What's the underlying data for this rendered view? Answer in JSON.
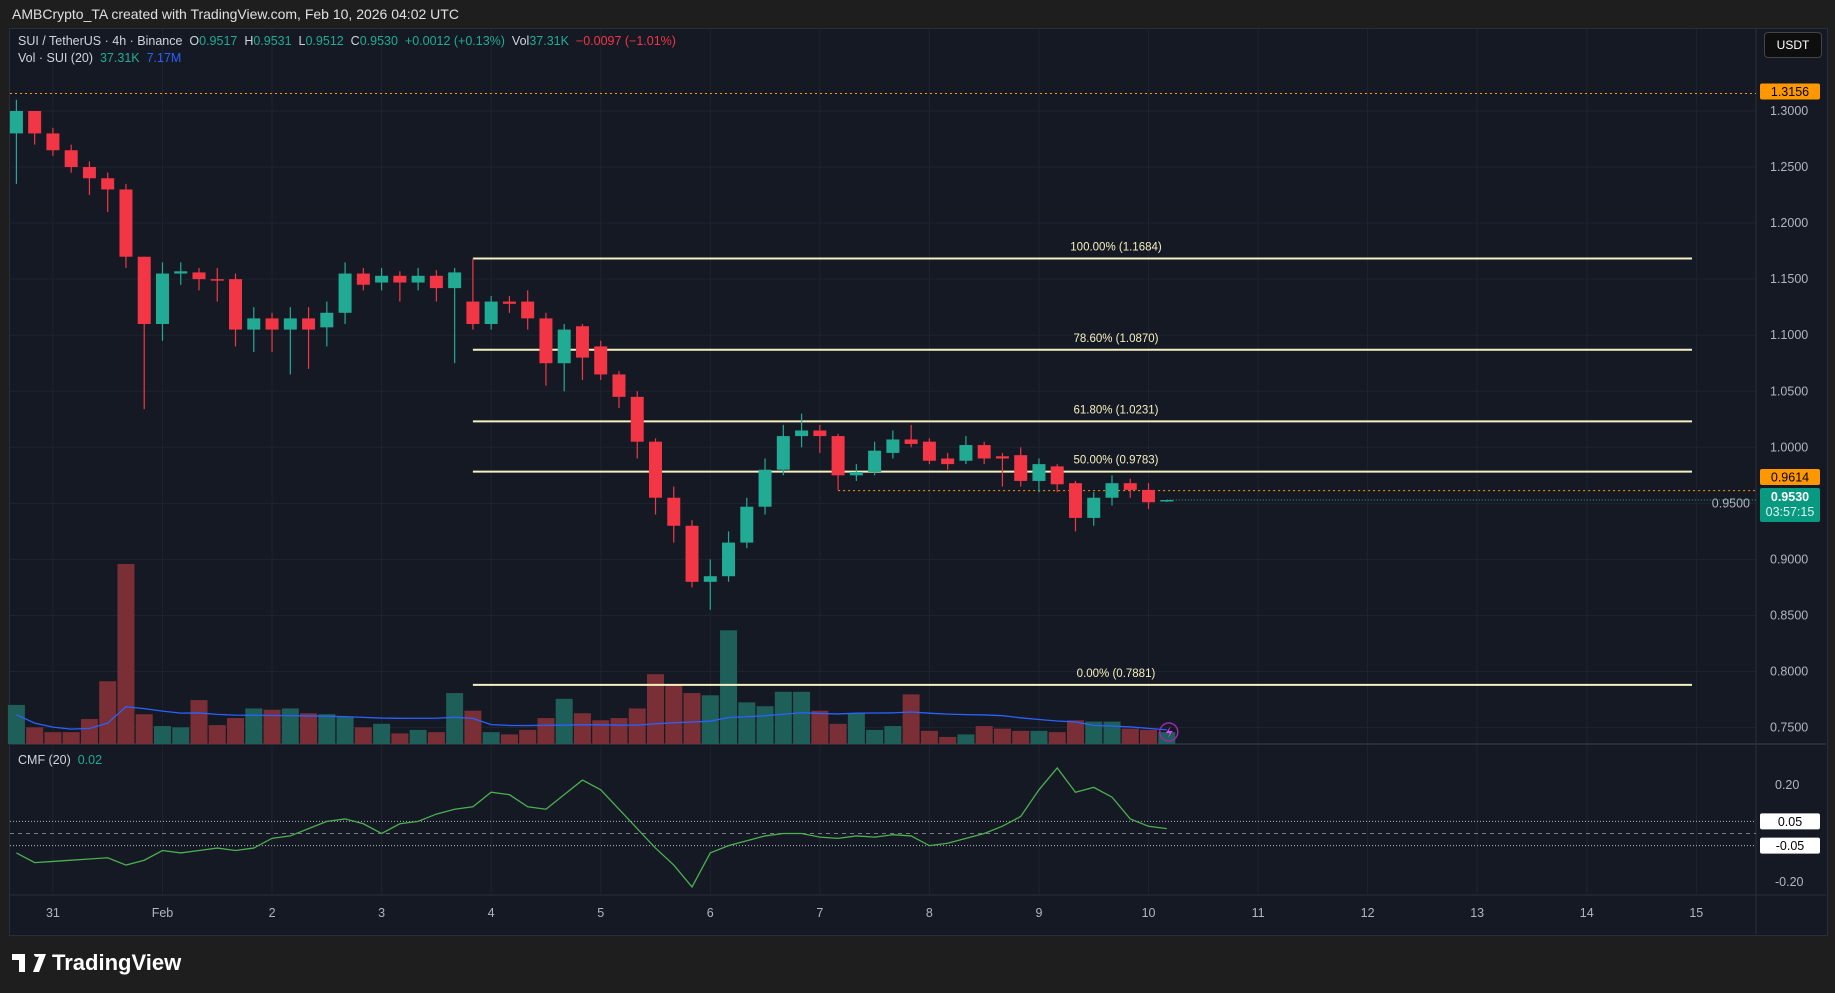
{
  "credit": "AMBCrypto_TA created with TradingView.com, Feb 10, 2026 04:02 UTC",
  "legend": {
    "symbol": "SUI / TetherUS · 4h · Binance",
    "o_label": "O",
    "o": "0.9517",
    "h_label": "H",
    "h": "0.9531",
    "l_label": "L",
    "l": "0.9512",
    "c_label": "C",
    "c": "0.9530",
    "change": "+0.0012 (+0.13%)",
    "vol_label": "Vol",
    "vol": "37.31K",
    "vol_change": "−0.0097 (−1.01%)",
    "vol_indicator": "Vol · SUI (20)",
    "vol_value": "37.31K",
    "vol_ma": "7.17M",
    "cmf_label": "CMF (20)",
    "cmf_value": "0.02"
  },
  "currency_button": "USDT",
  "logo": "TradingView",
  "colors": {
    "up": "#22ab94",
    "down": "#f23645",
    "fib": "#f5f0c0",
    "orange": "#ff9800",
    "cmf": "#4caf50",
    "vol_ma": "#2962ff"
  },
  "chart_data": [
    {
      "type": "candlestick",
      "timeframe": "4h",
      "start": "2026-01-30 16:00",
      "ylim": [
        0.73,
        1.33
      ],
      "y_ticks": [
        "1.3000",
        "1.2500",
        "1.2000",
        "1.1500",
        "1.1000",
        "1.0500",
        "1.0000",
        "0.9500",
        "0.9000",
        "0.8500",
        "0.8000",
        "0.7500"
      ],
      "x_ticks": [
        "31",
        "Feb",
        "2",
        "3",
        "4",
        "5",
        "6",
        "7",
        "8",
        "9",
        "10",
        "11",
        "12",
        "13",
        "14",
        "15"
      ],
      "price_labels": [
        {
          "value": "1.3156",
          "color": "#ff9800"
        },
        {
          "value": "0.9614",
          "color": "#ff9800"
        },
        {
          "value": "0.9530",
          "countdown": "03:57:15",
          "color": "#089981"
        }
      ],
      "fib_levels": [
        {
          "label": "100.00% (1.1684)",
          "value": 1.1684
        },
        {
          "label": "78.60% (1.0870)",
          "value": 1.087
        },
        {
          "label": "61.80% (1.0231)",
          "value": 1.0231
        },
        {
          "label": "50.00% (0.9783)",
          "value": 0.9783
        },
        {
          "label": "0.00% (0.7881)",
          "value": 0.7881
        }
      ],
      "ohlc": [
        [
          1.28,
          1.31,
          1.235,
          1.3
        ],
        [
          1.3,
          1.3,
          1.27,
          1.28
        ],
        [
          1.28,
          1.285,
          1.26,
          1.265
        ],
        [
          1.265,
          1.27,
          1.245,
          1.25
        ],
        [
          1.25,
          1.255,
          1.225,
          1.24
        ],
        [
          1.24,
          1.245,
          1.21,
          1.23
        ],
        [
          1.23,
          1.235,
          1.16,
          1.17
        ],
        [
          1.17,
          1.17,
          1.034,
          1.11
        ],
        [
          1.11,
          1.165,
          1.095,
          1.155
        ],
        [
          1.155,
          1.165,
          1.145,
          1.157
        ],
        [
          1.156,
          1.16,
          1.14,
          1.15
        ],
        [
          1.15,
          1.16,
          1.13,
          1.149
        ],
        [
          1.15,
          1.155,
          1.09,
          1.105
        ],
        [
          1.105,
          1.125,
          1.085,
          1.115
        ],
        [
          1.115,
          1.12,
          1.085,
          1.105
        ],
        [
          1.105,
          1.125,
          1.065,
          1.115
        ],
        [
          1.115,
          1.125,
          1.07,
          1.105
        ],
        [
          1.107,
          1.13,
          1.09,
          1.12
        ],
        [
          1.12,
          1.165,
          1.11,
          1.155
        ],
        [
          1.155,
          1.16,
          1.14,
          1.145
        ],
        [
          1.147,
          1.16,
          1.14,
          1.153
        ],
        [
          1.153,
          1.157,
          1.13,
          1.147
        ],
        [
          1.147,
          1.16,
          1.14,
          1.153
        ],
        [
          1.153,
          1.158,
          1.13,
          1.142
        ],
        [
          1.142,
          1.16,
          1.075,
          1.156
        ],
        [
          1.13,
          1.1684,
          1.105,
          1.11
        ],
        [
          1.11,
          1.135,
          1.105,
          1.13
        ],
        [
          1.13,
          1.135,
          1.12,
          1.128
        ],
        [
          1.13,
          1.14,
          1.105,
          1.115
        ],
        [
          1.115,
          1.12,
          1.055,
          1.075
        ],
        [
          1.075,
          1.11,
          1.05,
          1.105
        ],
        [
          1.108,
          1.11,
          1.06,
          1.08
        ],
        [
          1.09,
          1.095,
          1.06,
          1.065
        ],
        [
          1.065,
          1.068,
          1.035,
          1.045
        ],
        [
          1.045,
          1.05,
          0.99,
          1.005
        ],
        [
          1.005,
          1.008,
          0.94,
          0.955
        ],
        [
          0.955,
          0.965,
          0.915,
          0.93
        ],
        [
          0.93,
          0.935,
          0.875,
          0.88
        ],
        [
          0.88,
          0.9,
          0.855,
          0.885
        ],
        [
          0.885,
          0.925,
          0.88,
          0.915
        ],
        [
          0.915,
          0.955,
          0.91,
          0.947
        ],
        [
          0.947,
          0.99,
          0.94,
          0.98
        ],
        [
          0.98,
          1.02,
          0.975,
          1.01
        ],
        [
          1.01,
          1.03,
          1.0,
          1.015
        ],
        [
          1.015,
          1.02,
          0.995,
          1.01
        ],
        [
          1.01,
          1.012,
          0.962,
          0.975
        ],
        [
          0.975,
          0.985,
          0.97,
          0.978
        ],
        [
          0.978,
          1.005,
          0.975,
          0.997
        ],
        [
          0.995,
          1.015,
          0.99,
          1.007
        ],
        [
          1.007,
          1.02,
          1.0,
          1.003
        ],
        [
          1.005,
          1.008,
          0.985,
          0.988
        ],
        [
          0.99,
          0.995,
          0.98,
          0.985
        ],
        [
          0.988,
          1.01,
          0.985,
          1.002
        ],
        [
          1.002,
          1.005,
          0.985,
          0.99
        ],
        [
          0.992,
          0.995,
          0.965,
          0.99
        ],
        [
          0.993,
          1.0,
          0.965,
          0.97
        ],
        [
          0.97,
          0.99,
          0.96,
          0.985
        ],
        [
          0.983,
          0.985,
          0.96,
          0.967
        ],
        [
          0.968,
          0.97,
          0.925,
          0.937
        ],
        [
          0.937,
          0.96,
          0.93,
          0.955
        ],
        [
          0.955,
          0.975,
          0.948,
          0.968
        ],
        [
          0.968,
          0.972,
          0.955,
          0.962
        ],
        [
          0.962,
          0.968,
          0.945,
          0.951
        ],
        [
          0.9517,
          0.9531,
          0.9512,
          0.953
        ]
      ],
      "volume_k": [
        122,
        52,
        37,
        37,
        78,
        196,
        562,
        93,
        56,
        52,
        137,
        59,
        81,
        111,
        107,
        111,
        96,
        93,
        85,
        52,
        63,
        33,
        44,
        37,
        159,
        104,
        37,
        30,
        44,
        81,
        141,
        96,
        74,
        81,
        111,
        218,
        185,
        159,
        152,
        355,
        130,
        118,
        163,
        163,
        104,
        63,
        96,
        44,
        56,
        155,
        41,
        22,
        30,
        56,
        48,
        41,
        41,
        37,
        74,
        70,
        70,
        48,
        44,
        37
      ],
      "volume_ma_label": "7.17M"
    },
    {
      "type": "line",
      "title": "CMF (20)",
      "ylim": [
        -0.26,
        0.29
      ],
      "y_ticks": [
        "0.20",
        "-0.20"
      ],
      "levels": [
        "0.05",
        "-0.05"
      ],
      "values": [
        -0.08,
        -0.12,
        -0.115,
        -0.11,
        -0.105,
        -0.1,
        -0.13,
        -0.11,
        -0.07,
        -0.08,
        -0.07,
        -0.06,
        -0.07,
        -0.06,
        -0.02,
        -0.01,
        0.02,
        0.05,
        0.06,
        0.04,
        0.0,
        0.04,
        0.05,
        0.08,
        0.1,
        0.11,
        0.17,
        0.16,
        0.11,
        0.1,
        0.16,
        0.22,
        0.18,
        0.1,
        0.02,
        -0.06,
        -0.13,
        -0.22,
        -0.08,
        -0.05,
        -0.03,
        -0.01,
        0.0,
        0.0,
        -0.015,
        -0.02,
        -0.01,
        -0.015,
        -0.005,
        -0.01,
        -0.05,
        -0.04,
        -0.02,
        0.0,
        0.03,
        0.07,
        0.18,
        0.27,
        0.17,
        0.19,
        0.15,
        0.06,
        0.03,
        0.02
      ]
    }
  ]
}
